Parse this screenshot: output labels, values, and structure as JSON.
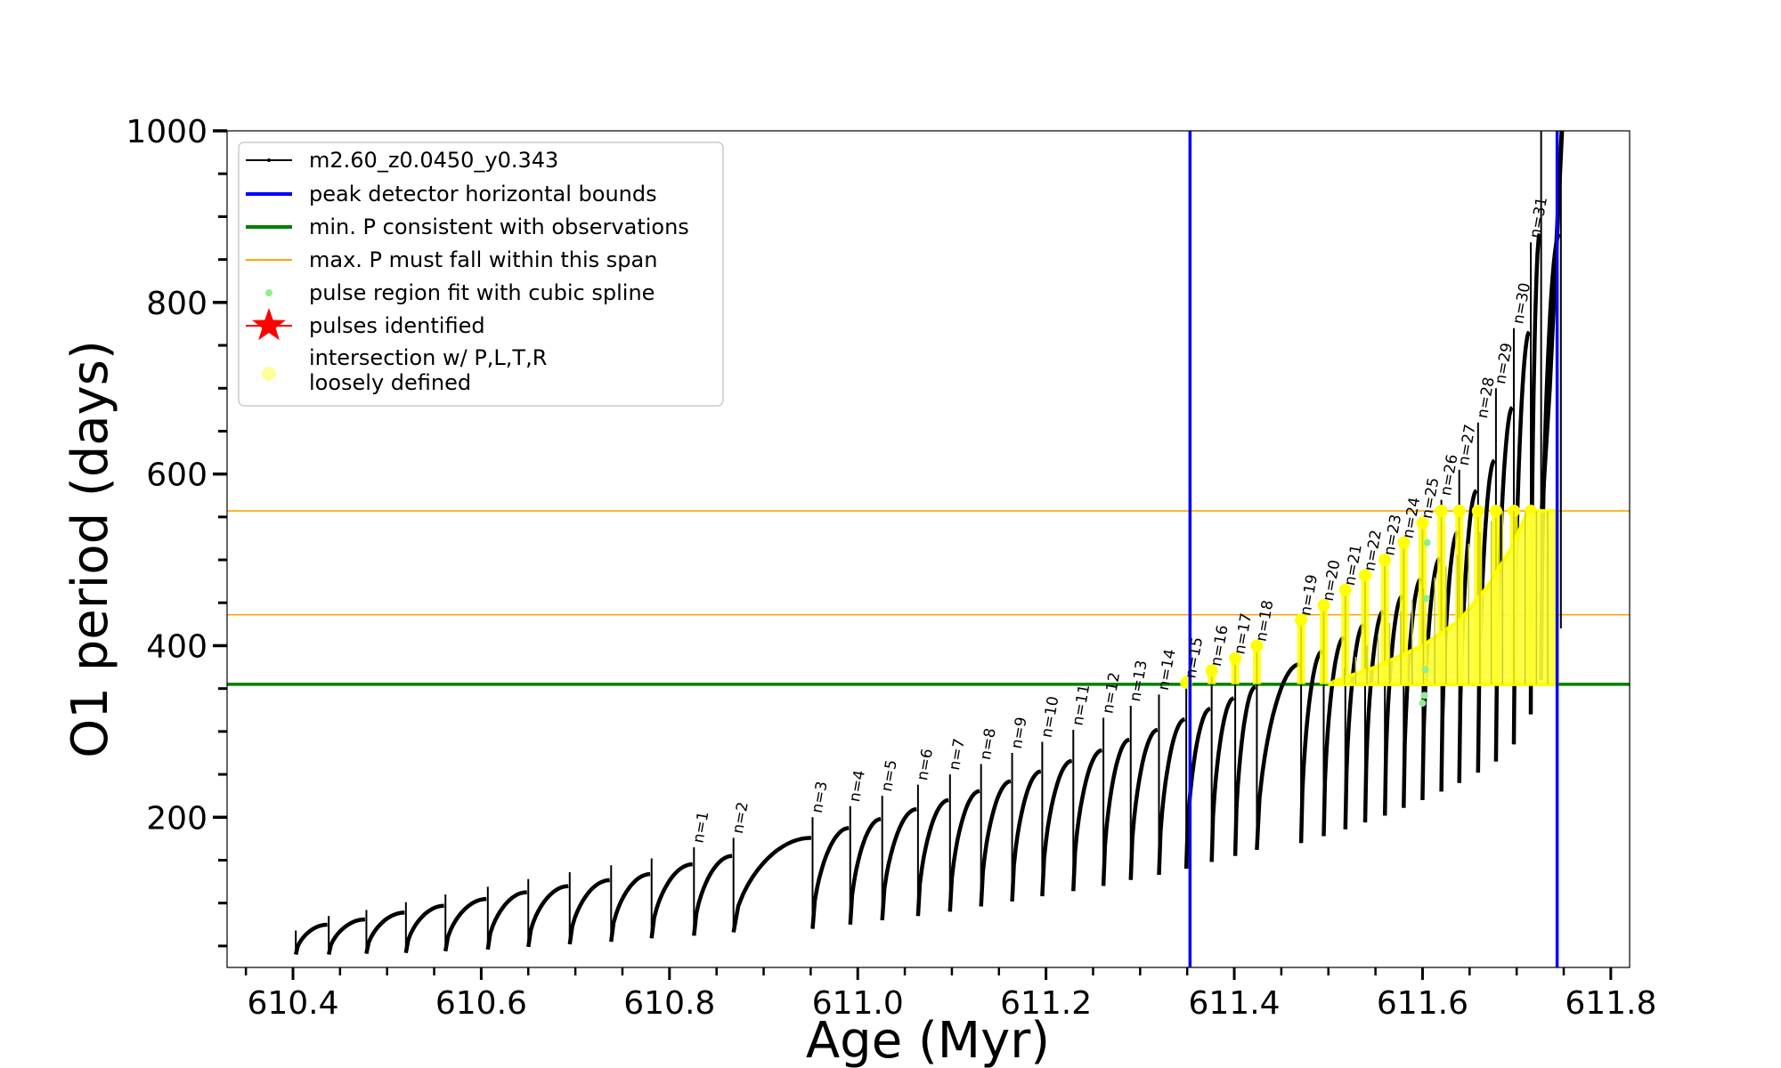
{
  "chart_data": {
    "type": "line",
    "xlabel": "Age (Myr)",
    "ylabel": "O1 period (days)",
    "xlim": [
      610.33,
      611.82
    ],
    "ylim": [
      25,
      1000
    ],
    "grid": false,
    "legend_placement": "top-left",
    "x_ticks": [
      "610.4",
      "610.6",
      "610.8",
      "611.0",
      "611.2",
      "611.4",
      "611.6",
      "611.8"
    ],
    "y_ticks": [
      "200",
      "400",
      "600",
      "800",
      "1000"
    ],
    "series": [
      {
        "name": "m2.60_z0.0450_y0.343",
        "color": "#000000",
        "kind": "line"
      },
      {
        "name": "peak detector horizontal bounds",
        "color": "#0000ff",
        "kind": "vline",
        "values": [
          611.353,
          611.743
        ]
      },
      {
        "name": "min. P consistent with observations",
        "color": "#008000",
        "kind": "hline",
        "values": [
          355
        ]
      },
      {
        "name": "max. P must fall within this span",
        "color": "#ffa500",
        "kind": "hline",
        "values": [
          436,
          557
        ]
      },
      {
        "name": "pulse region fit with cubic spline",
        "color": "#90ee90",
        "kind": "points"
      },
      {
        "name": "pulses identified",
        "color": "#ff0000",
        "kind": "star"
      },
      {
        "name": "intersection w/ P,L,T,R\nloosely defined",
        "color": "#ffff66",
        "kind": "points"
      }
    ],
    "pulses_pre": [
      {
        "t": 610.403,
        "lo": 40,
        "hi": 68
      },
      {
        "t": 610.438,
        "lo": 40,
        "hi": 85
      },
      {
        "t": 610.478,
        "lo": 41,
        "hi": 92
      },
      {
        "t": 610.52,
        "lo": 42,
        "hi": 101
      },
      {
        "t": 610.562,
        "lo": 44,
        "hi": 110
      },
      {
        "t": 610.607,
        "lo": 46,
        "hi": 119
      },
      {
        "t": 610.65,
        "lo": 49,
        "hi": 128
      },
      {
        "t": 610.694,
        "lo": 52,
        "hi": 136
      },
      {
        "t": 610.738,
        "lo": 55,
        "hi": 144
      },
      {
        "t": 610.781,
        "lo": 59,
        "hi": 152
      }
    ],
    "pulses_labeled": [
      {
        "label": "n=1",
        "t": 610.826,
        "lo": 62,
        "hi": 165
      },
      {
        "label": "n=2",
        "t": 610.868,
        "lo": 66,
        "hi": 176
      },
      {
        "label": "n=3",
        "t": 610.952,
        "lo": 70,
        "hi": 200
      },
      {
        "label": "n=4",
        "t": 610.992,
        "lo": 75,
        "hi": 213
      },
      {
        "label": "n=5",
        "t": 611.026,
        "lo": 80,
        "hi": 225
      },
      {
        "label": "n=6",
        "t": 611.064,
        "lo": 85,
        "hi": 238
      },
      {
        "label": "n=7",
        "t": 611.098,
        "lo": 90,
        "hi": 250
      },
      {
        "label": "n=8",
        "t": 611.131,
        "lo": 96,
        "hi": 262
      },
      {
        "label": "n=9",
        "t": 611.164,
        "lo": 102,
        "hi": 275
      },
      {
        "label": "n=10",
        "t": 611.196,
        "lo": 108,
        "hi": 288
      },
      {
        "label": "n=11",
        "t": 611.229,
        "lo": 114,
        "hi": 302
      },
      {
        "label": "n=12",
        "t": 611.261,
        "lo": 120,
        "hi": 316
      },
      {
        "label": "n=13",
        "t": 611.29,
        "lo": 127,
        "hi": 330
      },
      {
        "label": "n=14",
        "t": 611.32,
        "lo": 133,
        "hi": 343
      },
      {
        "label": "n=15",
        "t": 611.349,
        "lo": 140,
        "hi": 357
      },
      {
        "label": "n=16",
        "t": 611.376,
        "lo": 148,
        "hi": 371
      },
      {
        "label": "n=17",
        "t": 611.401,
        "lo": 155,
        "hi": 385
      },
      {
        "label": "n=18",
        "t": 611.424,
        "lo": 162,
        "hi": 400
      },
      {
        "label": "n=19",
        "t": 611.471,
        "lo": 170,
        "hi": 430
      },
      {
        "label": "n=20",
        "t": 611.495,
        "lo": 178,
        "hi": 447
      },
      {
        "label": "n=21",
        "t": 611.518,
        "lo": 186,
        "hi": 465
      },
      {
        "label": "n=22",
        "t": 611.539,
        "lo": 194,
        "hi": 482
      },
      {
        "label": "n=23",
        "t": 611.56,
        "lo": 202,
        "hi": 500
      },
      {
        "label": "n=24",
        "t": 611.58,
        "lo": 211,
        "hi": 520
      },
      {
        "label": "n=25",
        "t": 611.6,
        "lo": 220,
        "hi": 543
      },
      {
        "label": "n=26",
        "t": 611.62,
        "lo": 230,
        "hi": 570
      },
      {
        "label": "n=27",
        "t": 611.639,
        "lo": 240,
        "hi": 605
      },
      {
        "label": "n=28",
        "t": 611.659,
        "lo": 252,
        "hi": 660
      },
      {
        "label": "n=29",
        "t": 611.678,
        "lo": 265,
        "hi": 700
      },
      {
        "label": "n=30",
        "t": 611.697,
        "lo": 285,
        "hi": 770
      },
      {
        "label": "n=31",
        "t": 611.715,
        "lo": 320,
        "hi": 870
      }
    ],
    "pulses_final": [
      {
        "t": 611.726,
        "lo": 360,
        "hi": 1000
      },
      {
        "t": 611.747,
        "lo": 420,
        "hi": 1000
      }
    ]
  }
}
